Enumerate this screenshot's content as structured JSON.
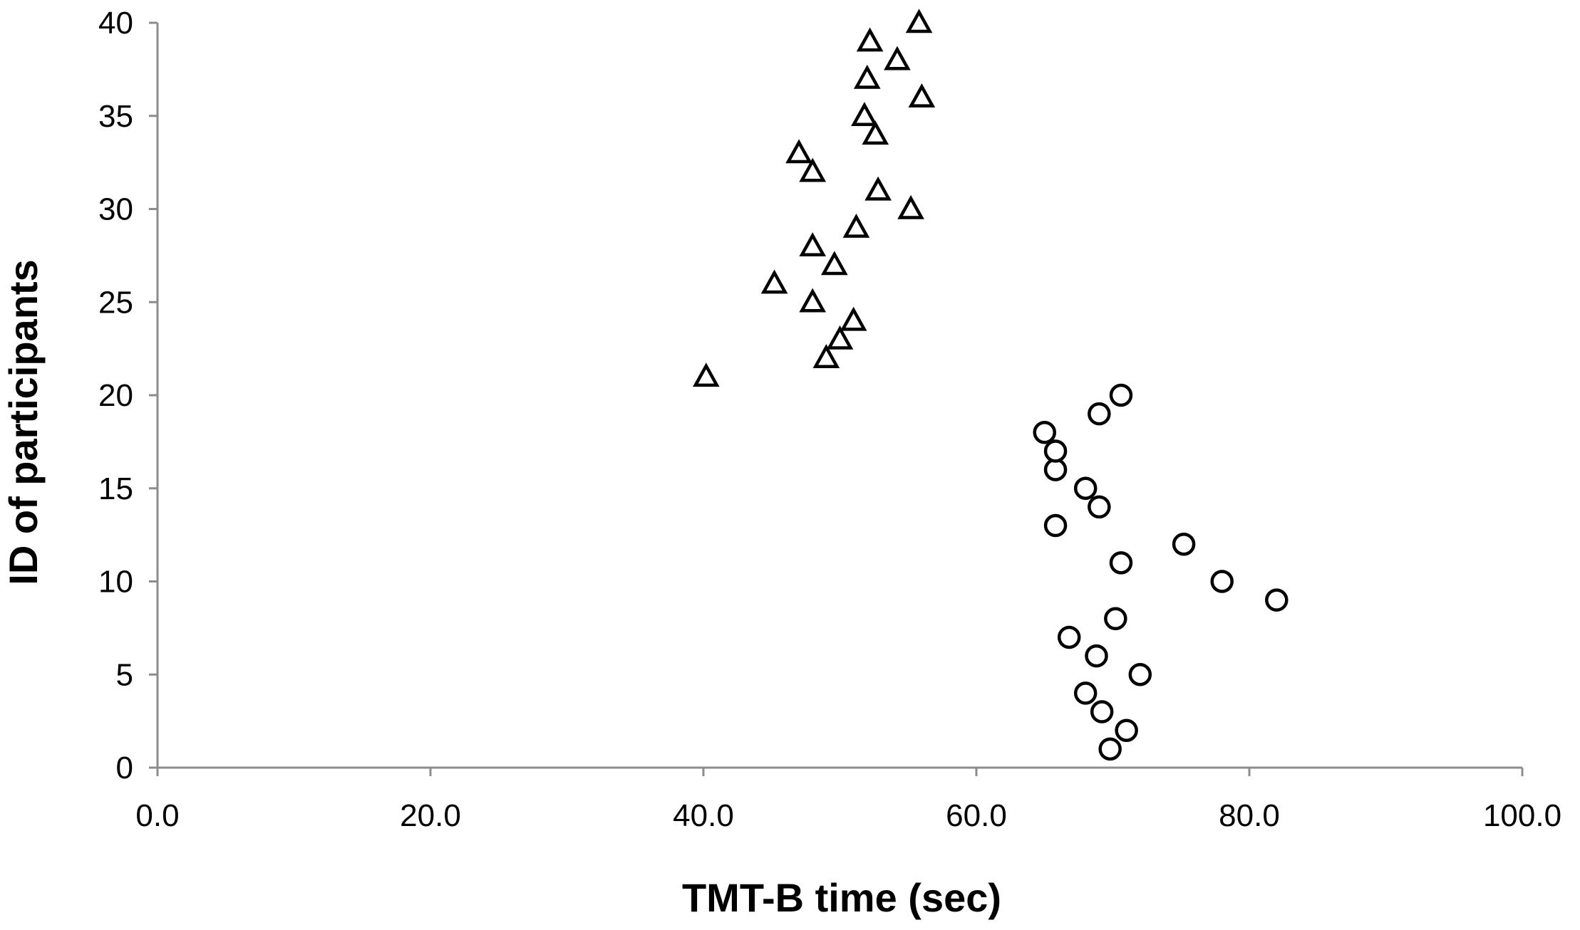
{
  "chart_data": {
    "type": "scatter",
    "xlabel": "TMT-B time (sec)",
    "ylabel": "ID of participants",
    "xlim": [
      0,
      100
    ],
    "ylim": [
      0,
      40
    ],
    "x_ticks": [
      "0.0",
      "20.0",
      "40.0",
      "60.0",
      "80.0",
      "100.0"
    ],
    "x_tick_values": [
      0,
      20,
      40,
      60,
      80,
      100
    ],
    "y_ticks": [
      "0",
      "5",
      "10",
      "15",
      "20",
      "25",
      "30",
      "35",
      "40"
    ],
    "y_tick_values": [
      0,
      5,
      10,
      15,
      20,
      25,
      30,
      35,
      40
    ],
    "grid": false,
    "legend": "none",
    "colors": {
      "marker_stroke": "#000000",
      "marker_fill": "#ffffff",
      "axis": "#8c8c8c"
    },
    "series": [
      {
        "marker": "circle",
        "points": [
          {
            "x": 69.8,
            "y": 1
          },
          {
            "x": 71.0,
            "y": 2
          },
          {
            "x": 69.2,
            "y": 3
          },
          {
            "x": 68.0,
            "y": 4
          },
          {
            "x": 72.0,
            "y": 5
          },
          {
            "x": 68.8,
            "y": 6
          },
          {
            "x": 66.8,
            "y": 7
          },
          {
            "x": 70.2,
            "y": 8
          },
          {
            "x": 82.0,
            "y": 9
          },
          {
            "x": 78.0,
            "y": 10
          },
          {
            "x": 70.6,
            "y": 11
          },
          {
            "x": 75.2,
            "y": 12
          },
          {
            "x": 65.8,
            "y": 13
          },
          {
            "x": 69.0,
            "y": 14
          },
          {
            "x": 68.0,
            "y": 15
          },
          {
            "x": 65.8,
            "y": 16
          },
          {
            "x": 65.8,
            "y": 17
          },
          {
            "x": 65.0,
            "y": 18
          },
          {
            "x": 69.0,
            "y": 19
          },
          {
            "x": 70.6,
            "y": 20
          }
        ]
      },
      {
        "marker": "triangle",
        "points": [
          {
            "x": 40.2,
            "y": 21
          },
          {
            "x": 49.0,
            "y": 22
          },
          {
            "x": 50.0,
            "y": 23
          },
          {
            "x": 51.0,
            "y": 24
          },
          {
            "x": 48.0,
            "y": 25
          },
          {
            "x": 45.2,
            "y": 26
          },
          {
            "x": 49.6,
            "y": 27
          },
          {
            "x": 48.0,
            "y": 28
          },
          {
            "x": 51.2,
            "y": 29
          },
          {
            "x": 55.2,
            "y": 30
          },
          {
            "x": 52.8,
            "y": 31
          },
          {
            "x": 48.0,
            "y": 32
          },
          {
            "x": 47.0,
            "y": 33
          },
          {
            "x": 52.6,
            "y": 34
          },
          {
            "x": 51.8,
            "y": 35
          },
          {
            "x": 56.0,
            "y": 36
          },
          {
            "x": 52.0,
            "y": 37
          },
          {
            "x": 54.2,
            "y": 38
          },
          {
            "x": 52.2,
            "y": 39
          },
          {
            "x": 55.8,
            "y": 40
          }
        ]
      }
    ]
  }
}
